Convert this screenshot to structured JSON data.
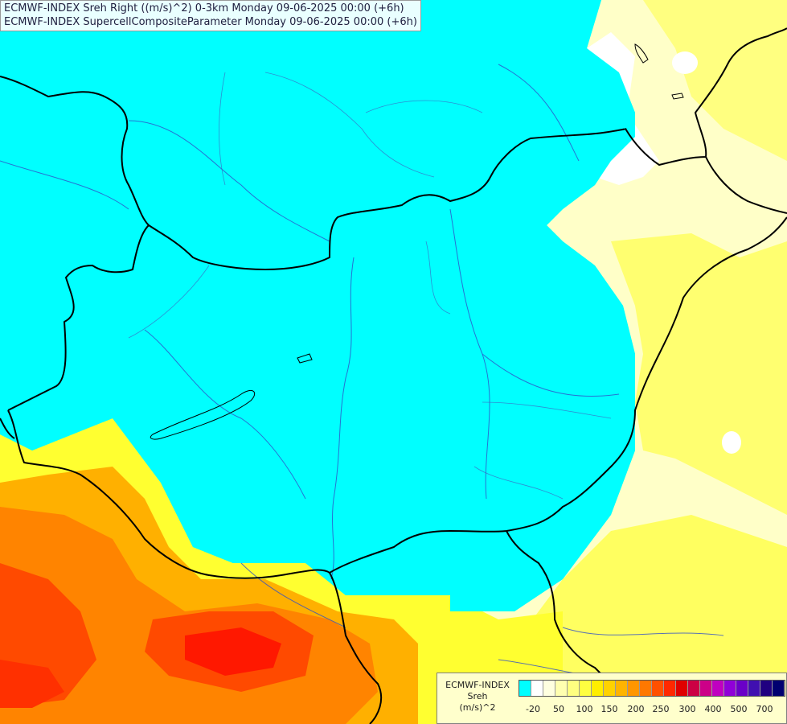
{
  "title": {
    "line1": "ECMWF-INDEX Sreh Right ((m/s)^2) 0-3km Monday 09-06-2025 00:00 (+6h)",
    "line2": "ECMWF-INDEX SupercellCompositeParameter Monday 09-06-2025 00:00 (+6h)"
  },
  "legend": {
    "line1": "ECMWF-INDEX",
    "line2": "Sreh",
    "line3": "(m/s)^2",
    "colors": [
      "#00ffff",
      "#ffffff",
      "#ffffe0",
      "#ffffb0",
      "#ffff80",
      "#ffff40",
      "#ffee00",
      "#ffd200",
      "#ffb400",
      "#ff9600",
      "#ff7800",
      "#ff5000",
      "#ff2800",
      "#e00000",
      "#cc0044",
      "#cc0088",
      "#c000c0",
      "#9000d8",
      "#6a00c8",
      "#4010b0",
      "#200080",
      "#000070"
    ],
    "ticks": [
      "-20",
      "50",
      "100",
      "150",
      "200",
      "250",
      "300",
      "400",
      "500",
      "700"
    ]
  },
  "map_colors": {
    "cyan": "#00ffff",
    "pale_yellow": "#ffffb0",
    "yellow": "#ffff40",
    "orange": "#ffa000",
    "red": "#ff3000",
    "border": "#000000",
    "river": "#3050c8"
  }
}
